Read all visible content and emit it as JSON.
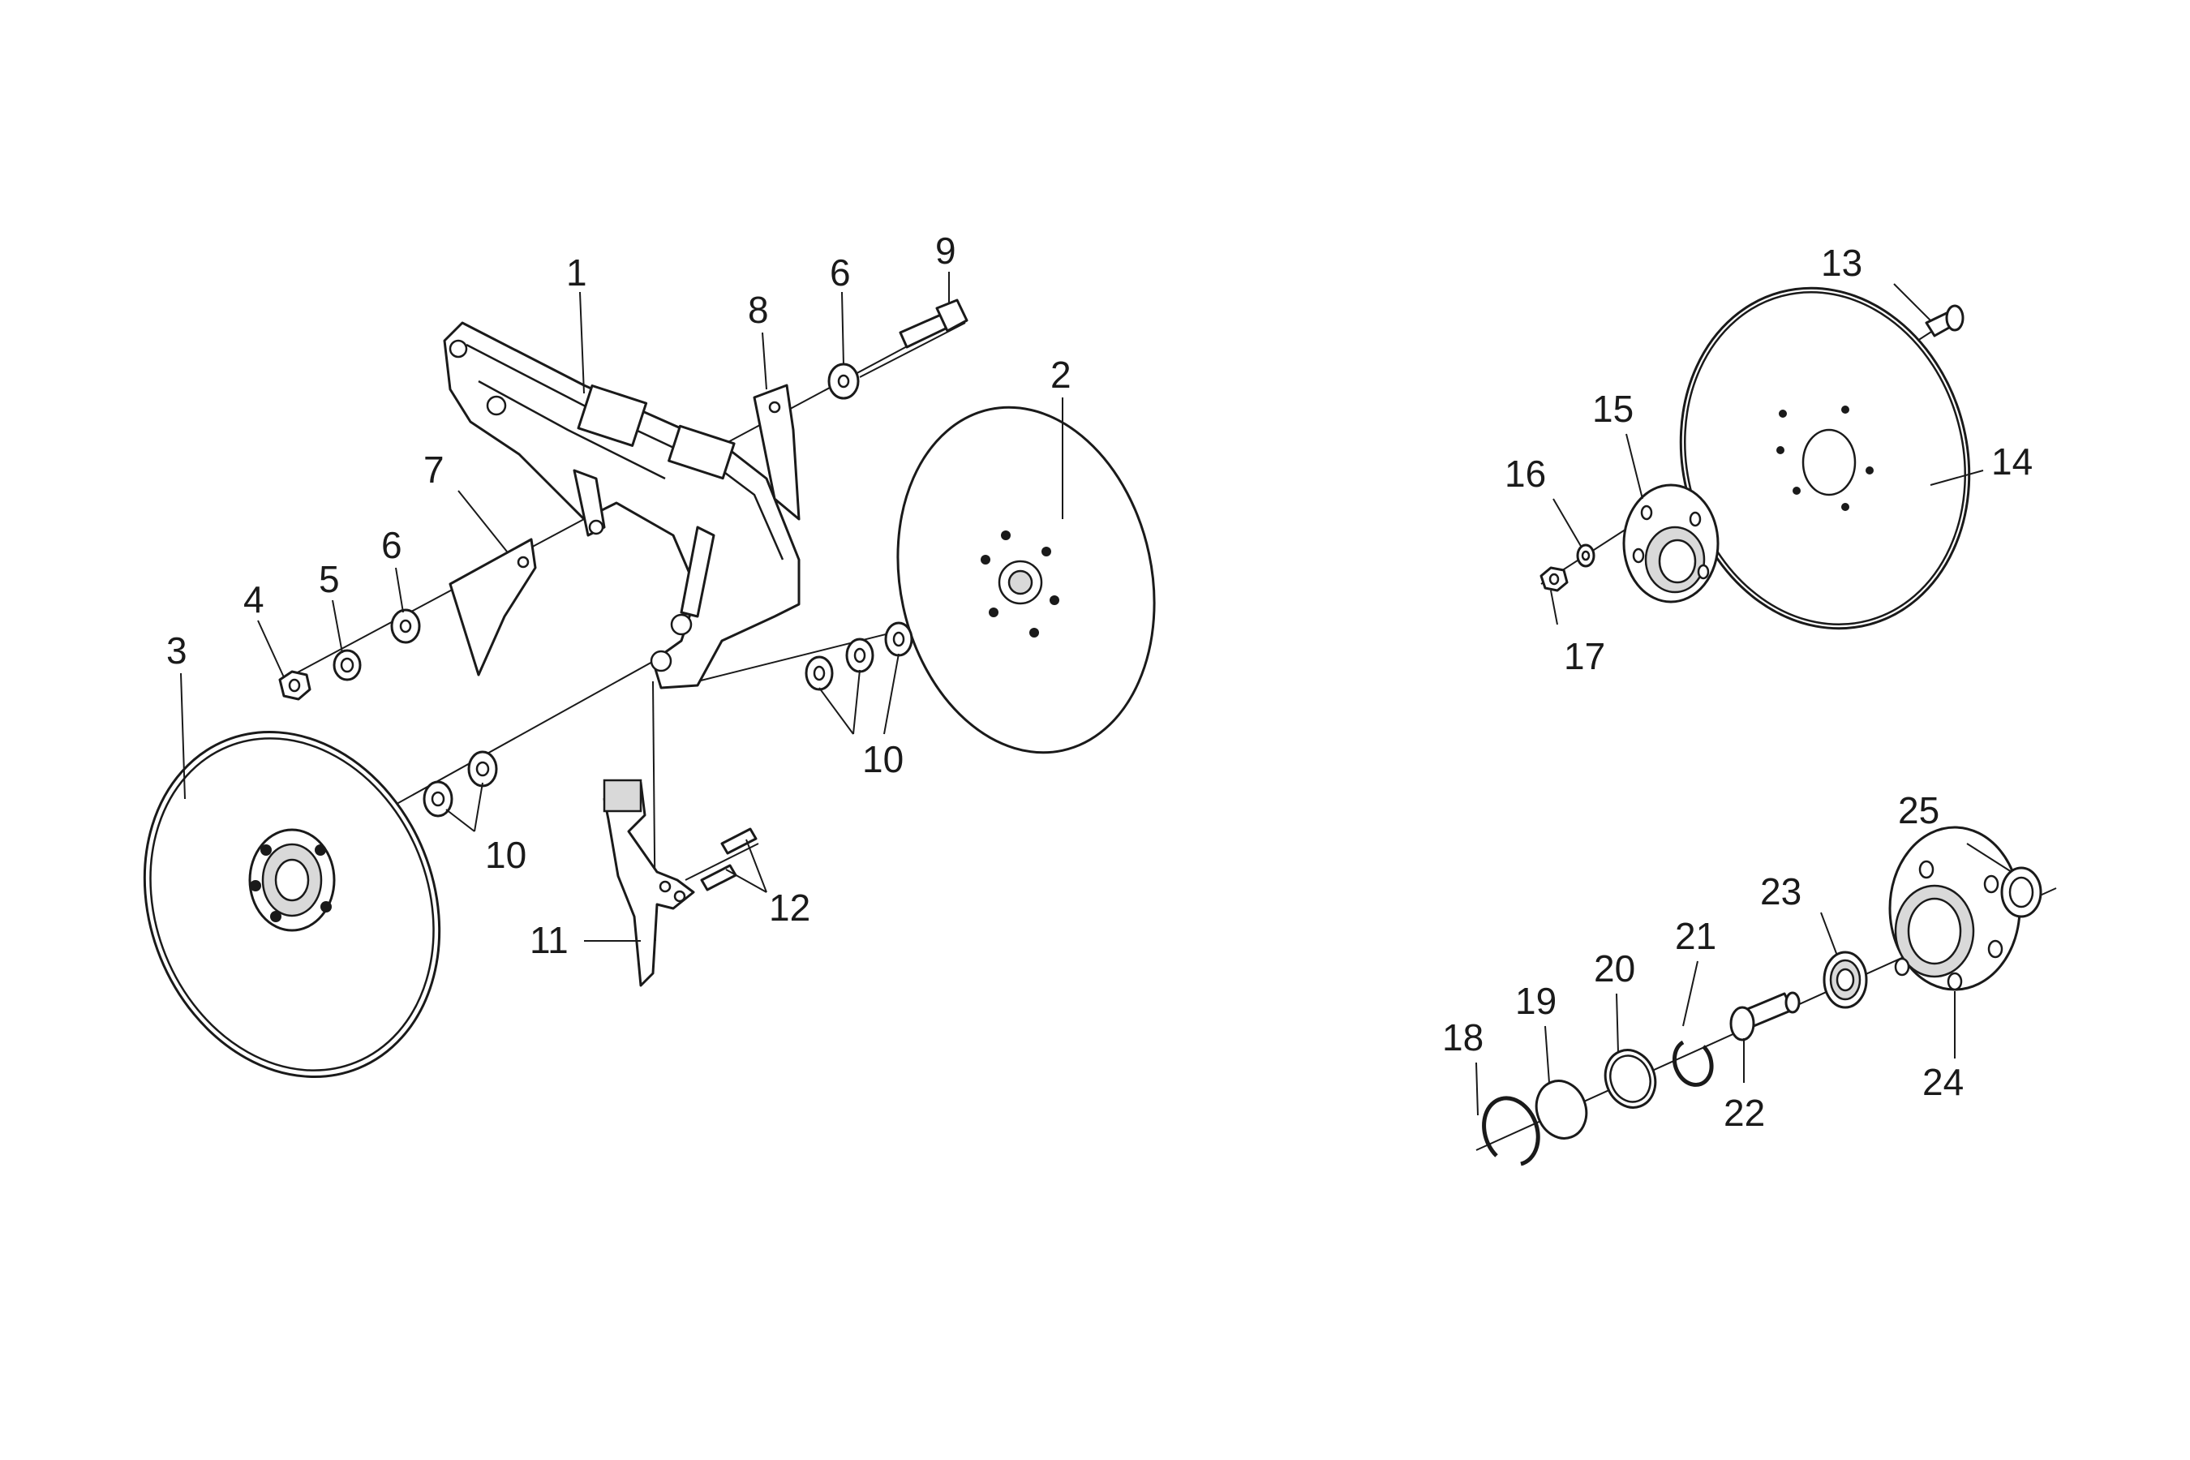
{
  "callouts": {
    "c1": "1",
    "c2": "2",
    "c3": "3",
    "c4": "4",
    "c5": "5",
    "c6a": "6",
    "c6b": "6",
    "c7": "7",
    "c8": "8",
    "c9": "9",
    "c10a": "10",
    "c10b": "10",
    "c11": "11",
    "c12": "12",
    "c13": "13",
    "c14": "14",
    "c15": "15",
    "c16": "16",
    "c17": "17",
    "c18": "18",
    "c19": "19",
    "c20": "20",
    "c21": "21",
    "c22": "22",
    "c23": "23",
    "c24": "24",
    "c25": "25"
  },
  "colors": {
    "line": "#1a1a1a",
    "background": "#ffffff",
    "shade": "#d9d9d9"
  }
}
